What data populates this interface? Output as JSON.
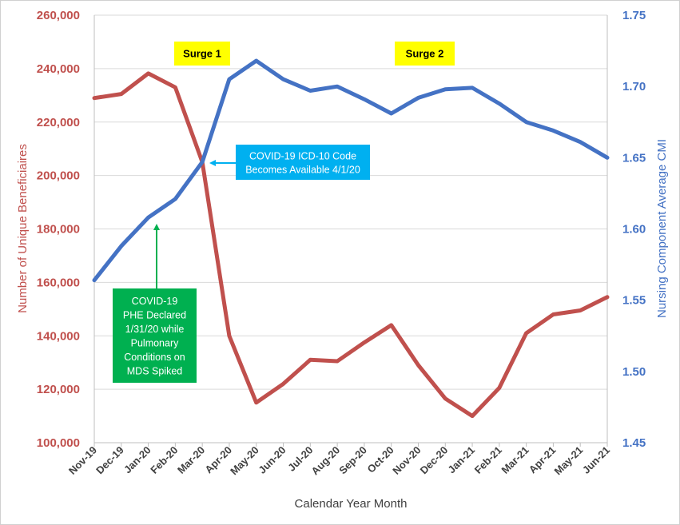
{
  "chart_data": {
    "type": "line",
    "title": "",
    "xlabel": "Calendar Year Month",
    "ylabel_left": "Number of Unique Beneficiaires",
    "ylabel_right": "Nursing Component Average CMI",
    "categories": [
      "Nov-19",
      "Dec-19",
      "Jan-20",
      "Feb-20",
      "Mar-20",
      "Apr-20",
      "May-20",
      "Jun-20",
      "Jul-20",
      "Aug-20",
      "Sep-20",
      "Oct-20",
      "Nov-20",
      "Dec-20",
      "Jan-21",
      "Feb-21",
      "Mar-21",
      "Apr-21",
      "May-21",
      "Jun-21"
    ],
    "ylim_left": [
      100000,
      260000
    ],
    "yticks_left": [
      "100,000",
      "120,000",
      "140,000",
      "160,000",
      "180,000",
      "200,000",
      "220,000",
      "240,000",
      "260,000"
    ],
    "ylim_right": [
      1.45,
      1.75
    ],
    "yticks_right": [
      "1.45",
      "1.50",
      "1.55",
      "1.60",
      "1.65",
      "1.70",
      "1.75"
    ],
    "grid": true,
    "series": [
      {
        "axis": "left",
        "color": "#c0504d",
        "values": [
          229000,
          230500,
          238200,
          233000,
          205000,
          140000,
          115000,
          122000,
          131000,
          130500,
          137500,
          144000,
          129000,
          116500,
          110000,
          120500,
          141000,
          148000,
          149500,
          154500
        ]
      },
      {
        "axis": "right",
        "color": "#4472c4",
        "values": [
          1.564,
          1.588,
          1.608,
          1.621,
          1.647,
          1.705,
          1.718,
          1.705,
          1.697,
          1.7,
          1.691,
          1.681,
          1.692,
          1.698,
          1.699,
          1.688,
          1.675,
          1.669,
          1.661,
          1.65
        ]
      }
    ],
    "annotations": [
      {
        "key": "surge1",
        "lines": [
          "Surge 1"
        ],
        "bg": "#ffff00",
        "text_color": "#000000"
      },
      {
        "key": "surge2",
        "lines": [
          "Surge 2"
        ],
        "bg": "#ffff00",
        "text_color": "#000000"
      },
      {
        "key": "icd",
        "lines": [
          "COVID-19 ICD-10 Code",
          "Becomes Available 4/1/20"
        ],
        "bg": "#00b0f0",
        "text_color": "#ffffff"
      },
      {
        "key": "phe",
        "lines": [
          "COVID-19",
          "PHE Declared",
          "1/31/20 while",
          "Pulmonary",
          "Conditions on",
          "MDS Spiked"
        ],
        "bg": "#00b050",
        "text_color": "#ffffff"
      }
    ],
    "colors": {
      "left_axis": "#c0504d",
      "right_axis": "#4472c4",
      "gridline": "#d9d9d9",
      "axis_title": "#404040",
      "icd_arrow": "#00b0f0",
      "phe_arrow": "#00b050"
    }
  }
}
